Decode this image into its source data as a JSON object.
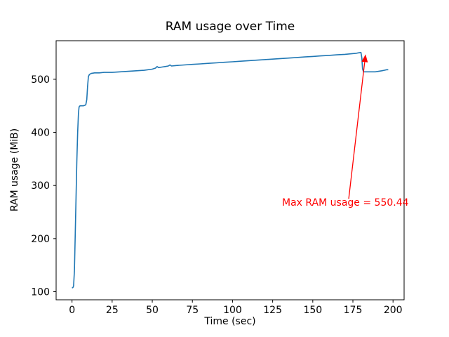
{
  "figure": {
    "title": "RAM usage over Time",
    "xlabel": "Time (sec)",
    "ylabel": "RAM usage (MiB)"
  },
  "chart_data": {
    "type": "line",
    "title": "RAM usage over Time",
    "xlabel": "Time (sec)",
    "ylabel": "RAM usage (MiB)",
    "grid": false,
    "legend": "none",
    "xlim": [
      -9.9,
      206.9
    ],
    "ylim": [
      84.8,
      572.6
    ],
    "xticks": [
      0,
      25,
      50,
      75,
      100,
      125,
      150,
      175,
      200
    ],
    "yticks": [
      100,
      200,
      300,
      400,
      500
    ],
    "max_ram_usage": 550.44,
    "series": [
      {
        "name": "RAM usage",
        "color": "#1f77b4",
        "points": [
          [
            0,
            107
          ],
          [
            0.6,
            108
          ],
          [
            1,
            111
          ],
          [
            1.5,
            140
          ],
          [
            2,
            205
          ],
          [
            2.5,
            278
          ],
          [
            3,
            345
          ],
          [
            3.5,
            400
          ],
          [
            4,
            435
          ],
          [
            4.4,
            448
          ],
          [
            5,
            450
          ],
          [
            6,
            450
          ],
          [
            7,
            450
          ],
          [
            8,
            451
          ],
          [
            8.6,
            452
          ],
          [
            9.2,
            462
          ],
          [
            9.7,
            486
          ],
          [
            10.2,
            505
          ],
          [
            10.8,
            509
          ],
          [
            12,
            511
          ],
          [
            14,
            512
          ],
          [
            17,
            512
          ],
          [
            20,
            513
          ],
          [
            25,
            513
          ],
          [
            30,
            514
          ],
          [
            35,
            515
          ],
          [
            40,
            516
          ],
          [
            45,
            517
          ],
          [
            50,
            519
          ],
          [
            52,
            521
          ],
          [
            53,
            524
          ],
          [
            54,
            522
          ],
          [
            56,
            523
          ],
          [
            58,
            524
          ],
          [
            60,
            525
          ],
          [
            61,
            527
          ],
          [
            62,
            525
          ],
          [
            65,
            526
          ],
          [
            70,
            527
          ],
          [
            75,
            528
          ],
          [
            80,
            529
          ],
          [
            85,
            530
          ],
          [
            90,
            531
          ],
          [
            95,
            532
          ],
          [
            100,
            533
          ],
          [
            105,
            534
          ],
          [
            110,
            535
          ],
          [
            115,
            536
          ],
          [
            120,
            537
          ],
          [
            125,
            538
          ],
          [
            130,
            539
          ],
          [
            135,
            540
          ],
          [
            140,
            541
          ],
          [
            145,
            542
          ],
          [
            150,
            543
          ],
          [
            155,
            544
          ],
          [
            160,
            545
          ],
          [
            165,
            546
          ],
          [
            170,
            547
          ],
          [
            174,
            548
          ],
          [
            177,
            549
          ],
          [
            179,
            550
          ],
          [
            180,
            550.44
          ],
          [
            180.6,
            540
          ],
          [
            181,
            520
          ],
          [
            181.6,
            514
          ],
          [
            183,
            514
          ],
          [
            186,
            514
          ],
          [
            189,
            514
          ],
          [
            191,
            515
          ],
          [
            193,
            516
          ],
          [
            194.5,
            517
          ],
          [
            196,
            518
          ],
          [
            197,
            518
          ]
        ]
      }
    ],
    "annotation": {
      "text": "Max RAM usage = 550.44",
      "color": "#ff0000",
      "arrow_from": [
        172.4,
        275
      ],
      "arrow_xy": [
        182.9,
        547
      ]
    }
  }
}
